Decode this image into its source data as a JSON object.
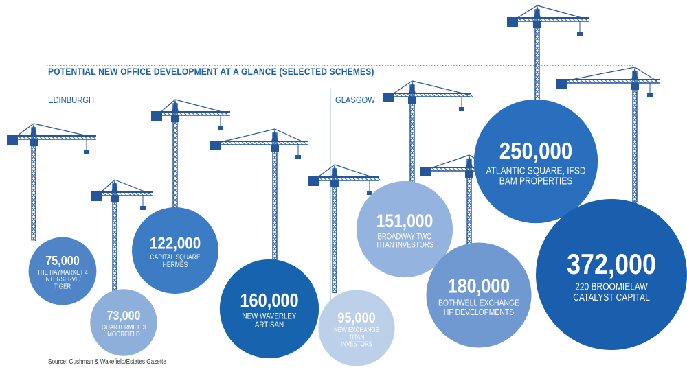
{
  "title": "POTENTIAL NEW OFFICE DEVELOPMENT AT A GLANCE (SELECTED SCHEMES)",
  "source": "Source: Cushman & Wakefield/Estates Gazette",
  "colors": {
    "title": "#1b5fa8",
    "crane": "#24569b",
    "dotted_line": "#1b5fa8",
    "divider": "#9fb8d6"
  },
  "chart_data": {
    "type": "bubble",
    "groups": [
      {
        "name": "EDINBURGH",
        "schemes": [
          {
            "value": 75000,
            "value_label": "75,000",
            "lines": [
              "THE HAYMARKET 4",
              "INTERSERVE/",
              "TIGER"
            ],
            "color": "#4f85c6"
          },
          {
            "value": 73000,
            "value_label": "73,000",
            "lines": [
              "QUARTERMILE 3",
              "MOORFIELD"
            ],
            "color": "#8eafd9"
          },
          {
            "value": 122000,
            "value_label": "122,000",
            "lines": [
              "CAPITAL SQUARE",
              "HERMES"
            ],
            "color": "#3b7cc4"
          },
          {
            "value": 160000,
            "value_label": "160,000",
            "lines": [
              "NEW WAVERLEY",
              "ARTISAN"
            ],
            "color": "#1763ae"
          }
        ]
      },
      {
        "name": "GLASGOW",
        "schemes": [
          {
            "value": 95000,
            "value_label": "95,000",
            "lines": [
              "NEW EXCHANGE",
              "TITAN",
              "INVESTORS"
            ],
            "color": "#bcd0ea"
          },
          {
            "value": 151000,
            "value_label": "151,000",
            "lines": [
              "BROADWAY TWO",
              "TITAN INVESTORS"
            ],
            "color": "#94b3de"
          },
          {
            "value": 180000,
            "value_label": "180,000",
            "lines": [
              "BOTHWELL EXCHANGE",
              "HF DEVELOPMENTS"
            ],
            "color": "#6f99d0"
          },
          {
            "value": 250000,
            "value_label": "250,000",
            "lines": [
              "ATLANTIC SQUARE, IFSD",
              "BAM PROPERTIES"
            ],
            "color": "#2a6fbd"
          },
          {
            "value": 372000,
            "value_label": "372,000",
            "lines": [
              "220 BROOMIELAW",
              "CATALYST CAPITAL"
            ],
            "color": "#1a5fae"
          }
        ]
      }
    ]
  }
}
